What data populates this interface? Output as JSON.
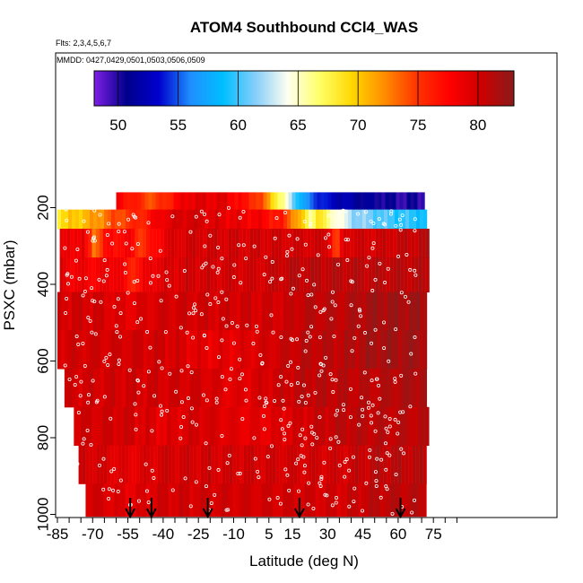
{
  "header": {
    "title": "ATOM4 Southbound CCl4_WAS",
    "flights": "Flts: 2,3,4,5,6,7",
    "dates": "MMDD: 0427,0429,0501,0503,0506,0509"
  },
  "chart_data": {
    "type": "heatmap",
    "title": "ATOM4 Southbound CCl4_WAS",
    "xlabel": "Latitude (deg N)",
    "ylabel": "PSXC (mbar)",
    "xlim": [
      -87,
      87
    ],
    "ylim": [
      1020,
      55
    ],
    "y_reversed": true,
    "x_ticks": [
      -85,
      -70,
      -55,
      -40,
      -25,
      -10,
      5,
      15,
      30,
      45,
      60,
      75
    ],
    "x_tick_labels": [
      "-85",
      "-70",
      "-55",
      "-40",
      "-25",
      "-10",
      "5",
      "15",
      "30",
      "45",
      "60",
      "75"
    ],
    "x_minor_step": 5,
    "y_ticks": [
      200,
      400,
      600,
      800,
      1000
    ],
    "y_tick_labels": [
      "200",
      "400",
      "600",
      "800",
      "1000"
    ],
    "colorbar": {
      "range": [
        48,
        83
      ],
      "ticks": [
        50,
        55,
        60,
        65,
        70,
        75,
        80
      ],
      "tick_labels": [
        "50",
        "55",
        "60",
        "65",
        "70",
        "75",
        "80"
      ],
      "colors": [
        "#7f1fe6",
        "#00008b",
        "#0000cd",
        "#1e90ff",
        "#00bfff",
        "#87cefa",
        "#fffff0",
        "#ffff66",
        "#ffd700",
        "#ff8c00",
        "#ff3300",
        "#ff0000",
        "#cc0000",
        "#8b1a1a"
      ]
    },
    "arrows_latitude": [
      -54,
      -45,
      -21,
      18,
      61
    ],
    "curtain": {
      "xmin": -85,
      "xmax": 72,
      "bands": [
        {
          "p": [
            160,
            205
          ],
          "lon": -60,
          "loff": 70,
          "segments": [
            [
              -85,
              57
            ],
            [
              -60,
              78
            ],
            [
              -45,
              74
            ],
            [
              -30,
              79
            ],
            [
              -15,
              79
            ],
            [
              0,
              75
            ],
            [
              10,
              66
            ],
            [
              20,
              56
            ],
            [
              30,
              53
            ],
            [
              45,
              51
            ],
            [
              60,
              50
            ],
            [
              72,
              50
            ]
          ]
        },
        {
          "p": [
            205,
            255
          ],
          "lon": -85,
          "loff": 72,
          "segments": [
            [
              -85,
              69
            ],
            [
              -72,
              71
            ],
            [
              -62,
              74
            ],
            [
              -50,
              76
            ],
            [
              -40,
              79
            ],
            [
              -30,
              80
            ],
            [
              -15,
              79
            ],
            [
              0,
              78
            ],
            [
              10,
              76
            ],
            [
              18,
              70
            ],
            [
              22,
              66
            ],
            [
              25,
              69
            ],
            [
              30,
              66
            ],
            [
              40,
              62
            ],
            [
              55,
              60
            ],
            [
              72,
              59
            ]
          ]
        },
        {
          "p": [
            255,
            330
          ],
          "lon": -84,
          "loff": 72,
          "segments": [
            [
              -85,
              78
            ],
            [
              -75,
              79
            ],
            [
              -70,
              73
            ],
            [
              -65,
              77
            ],
            [
              -55,
              78
            ],
            [
              -50,
              75
            ],
            [
              -40,
              79
            ],
            [
              -30,
              80
            ],
            [
              -15,
              80
            ],
            [
              0,
              80
            ],
            [
              10,
              80
            ],
            [
              20,
              80
            ],
            [
              30,
              80
            ],
            [
              33,
              73
            ],
            [
              36,
              80
            ],
            [
              50,
              80
            ],
            [
              72,
              81
            ]
          ]
        },
        {
          "p": [
            330,
            420
          ],
          "lon": -84,
          "loff": 72,
          "segments": [
            [
              -85,
              79
            ],
            [
              -70,
              78
            ],
            [
              -60,
              79
            ],
            [
              -55,
              76
            ],
            [
              -45,
              79
            ],
            [
              -30,
              80
            ],
            [
              -15,
              80
            ],
            [
              0,
              80
            ],
            [
              15,
              81
            ],
            [
              30,
              81
            ],
            [
              45,
              81
            ],
            [
              72,
              81
            ]
          ]
        },
        {
          "p": [
            420,
            520
          ],
          "lon": -86,
          "loff": 73,
          "segments": [
            [
              -85,
              80
            ],
            [
              -70,
              80
            ],
            [
              -55,
              79
            ],
            [
              -40,
              80
            ],
            [
              -25,
              80
            ],
            [
              -10,
              80
            ],
            [
              0,
              80
            ],
            [
              10,
              80
            ],
            [
              20,
              81
            ],
            [
              35,
              81
            ],
            [
              50,
              82
            ],
            [
              72,
              82
            ]
          ]
        },
        {
          "p": [
            520,
            620
          ],
          "lon": -87,
          "loff": 73,
          "segments": [
            [
              -85,
              80
            ],
            [
              -70,
              80
            ],
            [
              -55,
              80
            ],
            [
              -40,
              80
            ],
            [
              -25,
              79
            ],
            [
              -10,
              79
            ],
            [
              5,
              80
            ],
            [
              20,
              81
            ],
            [
              35,
              81
            ],
            [
              50,
              82
            ],
            [
              72,
              82
            ]
          ]
        },
        {
          "p": [
            620,
            720
          ],
          "lon": -82,
          "loff": 72,
          "segments": [
            [
              -85,
              80
            ],
            [
              -70,
              80
            ],
            [
              -55,
              80
            ],
            [
              -40,
              80
            ],
            [
              -25,
              80
            ],
            [
              -10,
              79
            ],
            [
              5,
              80
            ],
            [
              20,
              81
            ],
            [
              35,
              81
            ],
            [
              50,
              81
            ],
            [
              72,
              82
            ]
          ]
        },
        {
          "p": [
            720,
            820
          ],
          "lon": -78,
          "loff": 72,
          "segments": [
            [
              -85,
              80
            ],
            [
              -70,
              80
            ],
            [
              -55,
              80
            ],
            [
              -40,
              79
            ],
            [
              -25,
              80
            ],
            [
              -10,
              79
            ],
            [
              5,
              79
            ],
            [
              20,
              80
            ],
            [
              35,
              81
            ],
            [
              50,
              81
            ],
            [
              72,
              81
            ]
          ]
        },
        {
          "p": [
            820,
            920
          ],
          "lon": -76,
          "loff": 71,
          "segments": [
            [
              -85,
              80
            ],
            [
              -70,
              80
            ],
            [
              -55,
              79
            ],
            [
              -40,
              80
            ],
            [
              -25,
              80
            ],
            [
              -10,
              80
            ],
            [
              5,
              80
            ],
            [
              20,
              80
            ],
            [
              35,
              80
            ],
            [
              50,
              81
            ],
            [
              72,
              81
            ]
          ]
        },
        {
          "p": [
            920,
            1005
          ],
          "lon": -73,
          "loff": 71,
          "segments": [
            [
              -85,
              80
            ],
            [
              -70,
              80
            ],
            [
              -55,
              79
            ],
            [
              -40,
              80
            ],
            [
              -25,
              80
            ],
            [
              -10,
              80
            ],
            [
              5,
              80
            ],
            [
              20,
              80
            ],
            [
              35,
              80
            ],
            [
              50,
              81
            ],
            [
              72,
              81
            ]
          ]
        }
      ]
    }
  }
}
